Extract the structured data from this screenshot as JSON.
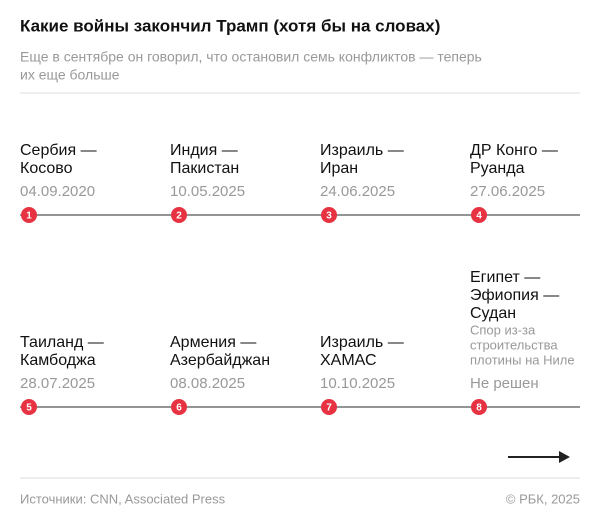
{
  "header": {
    "title": "Какие войны закончил Трамп (хотя бы на словах)",
    "subtitle": [
      "Еще в сентябре он говорил, что остановил семь конфликтов — теперь",
      "их еще больше"
    ]
  },
  "rows": [
    [
      {
        "number": "1",
        "name": [
          "Сербия —",
          "Косово"
        ],
        "date": "04.09.2020"
      },
      {
        "number": "2",
        "name": [
          "Индия —",
          "Пакистан"
        ],
        "date": "10.05.2025"
      },
      {
        "number": "3",
        "name": [
          "Израиль —",
          "Иран"
        ],
        "date": "24.06.2025"
      },
      {
        "number": "4",
        "name": [
          "ДР Конго —",
          "Руанда"
        ],
        "date": "27.06.2025"
      }
    ],
    [
      {
        "number": "5",
        "name": [
          "Таиланд —",
          "Камбоджа"
        ],
        "date": "28.07.2025"
      },
      {
        "number": "6",
        "name": [
          "Армения —",
          "Азербайджан"
        ],
        "date": "08.08.2025"
      },
      {
        "number": "7",
        "name": [
          "Израиль —",
          "ХАМАС"
        ],
        "date": "10.10.2025"
      },
      {
        "number": "8",
        "name": [
          "Египет —",
          "Эфиопия —",
          "Судан"
        ],
        "note": [
          "Спор из-за",
          "строительства",
          "плотины на Ниле"
        ],
        "date": "Не решен"
      }
    ]
  ],
  "footer": {
    "sources": "Источники: CNN, Associated Press",
    "copyright": "© РБК, 2025"
  }
}
